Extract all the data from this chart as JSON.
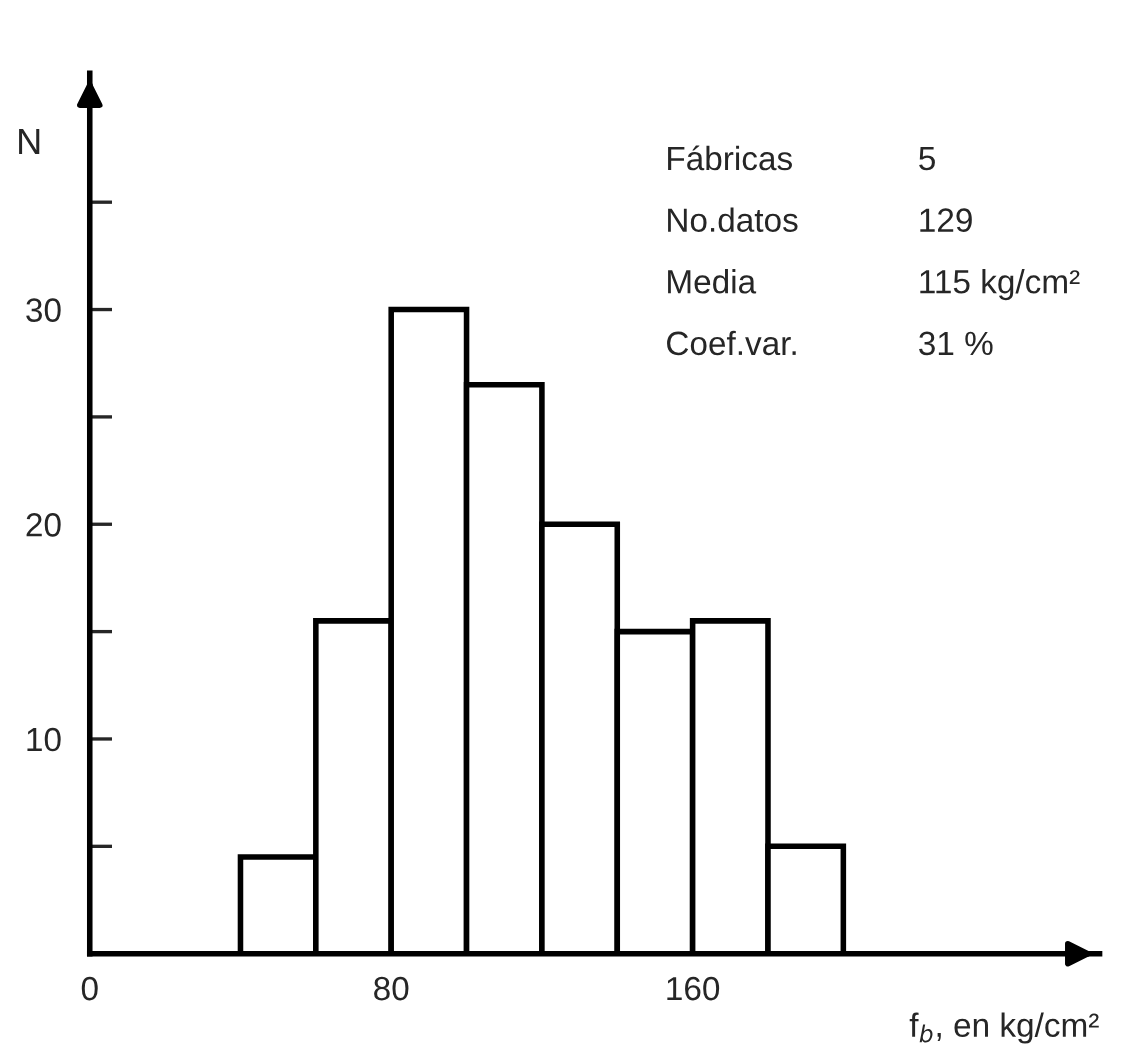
{
  "chart_data": {
    "type": "histogram",
    "xlabel": "f$_{b}$, en kg/cm²",
    "ylabel": "N",
    "bins": [
      40,
      60,
      80,
      100,
      120,
      140,
      160,
      180,
      200
    ],
    "values": [
      4.5,
      15.5,
      30,
      26.5,
      20,
      15,
      15.5,
      5
    ],
    "color": "#ffffff",
    "xlim": [
      0,
      268
    ],
    "ylim": [
      0,
      41
    ],
    "xticks": [
      0,
      80,
      160
    ],
    "yticks": [
      {
        "value": 5,
        "label": null
      },
      10,
      {
        "value": 15,
        "label": null
      },
      20,
      {
        "value": 25,
        "label": null
      },
      30,
      {
        "value": 35,
        "label": null
      }
    ],
    "grid": false,
    "legend": false,
    "annotations": [
      "Fábricas",
      "5",
      "No.datos",
      "129",
      "Media",
      "115 kg/cm²",
      "Coef.var.",
      "31 %"
    ]
  }
}
